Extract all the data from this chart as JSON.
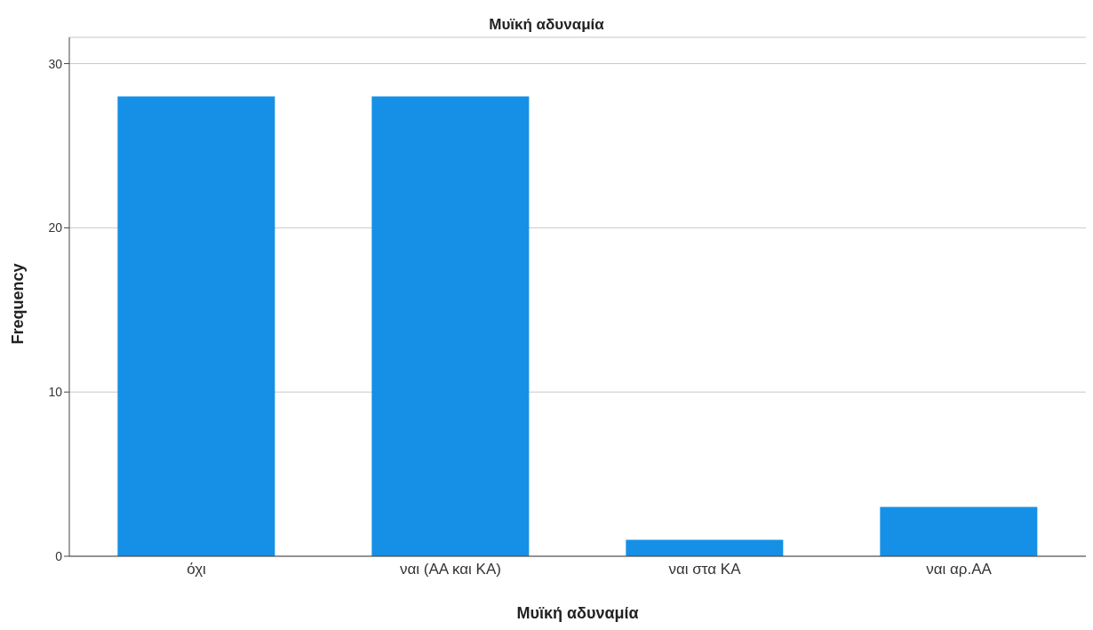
{
  "chart_data": {
    "type": "bar",
    "title": "Μυϊκή αδυναμία",
    "xlabel": "Μυϊκή αδυναμία",
    "ylabel": "Frequency",
    "categories": [
      "όχι",
      "ναι (ΑΑ και ΚΑ)",
      "ναι στα ΚΑ",
      "ναι αρ.ΑΑ"
    ],
    "values": [
      28,
      28,
      1,
      3
    ],
    "color": "#1590e6",
    "ylim": [
      0,
      31.6
    ],
    "yticks": [
      0,
      10,
      20,
      30
    ],
    "grid": "y",
    "legend": false
  }
}
